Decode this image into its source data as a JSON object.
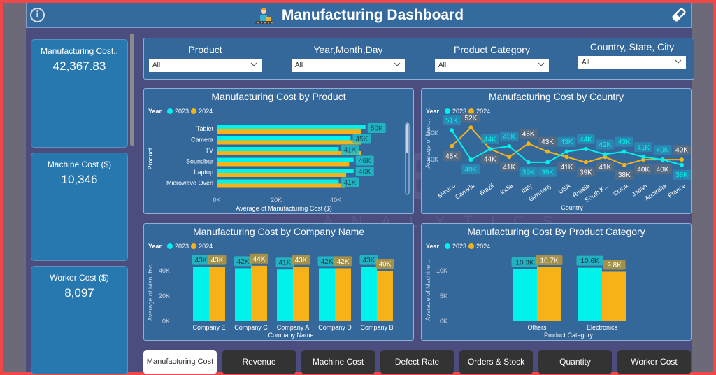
{
  "header": {
    "title": "Manufacturing Dashboard",
    "info_icon": "info-icon",
    "logo_icon": "worker-conveyor-icon",
    "clear_filters_icon": "eraser-icon"
  },
  "kpis": [
    {
      "label": "Manufacturing Cost..",
      "value": "42,367.83"
    },
    {
      "label": "Machine Cost ($)",
      "value": "10,346"
    },
    {
      "label": "Worker Cost ($)",
      "value": "8,097"
    }
  ],
  "slicers": [
    {
      "label": "Product",
      "value": "All"
    },
    {
      "label": "Year,Month,Day",
      "value": "All"
    },
    {
      "label": "Product Category",
      "value": "All"
    },
    {
      "label": "Country, State, City",
      "value": "All"
    }
  ],
  "legend": {
    "title": "Year",
    "items": [
      "2023",
      "2024"
    ]
  },
  "colors": {
    "y2023": "#00f2ea",
    "y2024": "#f7b218",
    "panel": "#34679a",
    "canvas": "#4a4d7e"
  },
  "chart_data": [
    {
      "id": "by_product",
      "type": "bar",
      "orientation": "horizontal",
      "title": "Manufacturing Cost by Product",
      "xlabel": "Average of Manufacturing Cost ($)",
      "ylabel": "Product",
      "categories": [
        "Tablet",
        "Camera",
        "TV",
        "Soundbar",
        "Laptop",
        "Microwave Oven"
      ],
      "series": [
        {
          "name": "2023",
          "values": [
            50,
            45,
            41,
            46,
            46,
            41
          ],
          "labels": [
            "50K",
            "45K",
            "41K",
            "46K",
            "46K",
            "41K"
          ]
        },
        {
          "name": "2024",
          "values": [
            48.5,
            48.5,
            48.5,
            44.5,
            43.5,
            43
          ]
        }
      ],
      "xticks": [
        "0K",
        "20K",
        "40K"
      ],
      "xlim": [
        0,
        55
      ],
      "unit": "K"
    },
    {
      "id": "by_country",
      "type": "line",
      "title": "Manufacturing Cost by Country",
      "xlabel": "Country",
      "ylabel": "Average of Man...",
      "categories": [
        "Mexico",
        "Canada",
        "Brazil",
        "India",
        "Italy",
        "Germany",
        "USA",
        "Russia",
        "South K...",
        "China",
        "Japan",
        "Australia",
        "France"
      ],
      "series": [
        {
          "name": "2023",
          "values": [
            51,
            40,
            44,
            45,
            39,
            39,
            43,
            44,
            42,
            43,
            41,
            40,
            38
          ]
        },
        {
          "name": "2024",
          "values": [
            45,
            52,
            44,
            41,
            46,
            43,
            41,
            39,
            41,
            38,
            40,
            40,
            40
          ]
        }
      ],
      "yticks": [
        "40K",
        "50K"
      ],
      "ylim": [
        34,
        56
      ],
      "unit": "K"
    },
    {
      "id": "by_company",
      "type": "bar",
      "orientation": "vertical",
      "title": "Manufacturing Cost by Company Name",
      "xlabel": "Company Name",
      "ylabel": "Average of Manufac...",
      "categories": [
        "Company E",
        "Company C",
        "Company A",
        "Company D",
        "Company B"
      ],
      "series": [
        {
          "name": "2023",
          "values": [
            43,
            42,
            41,
            42,
            43
          ]
        },
        {
          "name": "2024",
          "values": [
            43,
            44,
            43,
            42,
            40
          ]
        }
      ],
      "yticks": [
        "0K",
        "20K",
        "40K"
      ],
      "ylim": [
        0,
        50
      ],
      "unit": "K"
    },
    {
      "id": "by_category",
      "type": "bar",
      "orientation": "vertical",
      "title": "Manufacturing Cost By Product Category",
      "xlabel": "Product Category",
      "ylabel": "Average of Machine...",
      "categories": [
        "Others",
        "Electronics"
      ],
      "series": [
        {
          "name": "2023",
          "values": [
            10.3,
            10.6
          ]
        },
        {
          "name": "2024",
          "values": [
            10.7,
            9.8
          ]
        }
      ],
      "yticks": [
        "0K",
        "5K",
        "10K"
      ],
      "ylim": [
        0,
        12.5
      ],
      "unit": "K"
    }
  ],
  "nav_buttons": [
    {
      "label": "Manufacturing Cost",
      "active": true
    },
    {
      "label": "Revenue",
      "active": false
    },
    {
      "label": "Machine Cost",
      "active": false
    },
    {
      "label": "Defect Rate",
      "active": false
    },
    {
      "label": "Orders & Stock",
      "active": false
    },
    {
      "label": "Quantity",
      "active": false
    },
    {
      "label": "Worker Cost",
      "active": false
    }
  ],
  "watermark": {
    "text": "XBYTE",
    "subtext": "ANALYTICS"
  }
}
